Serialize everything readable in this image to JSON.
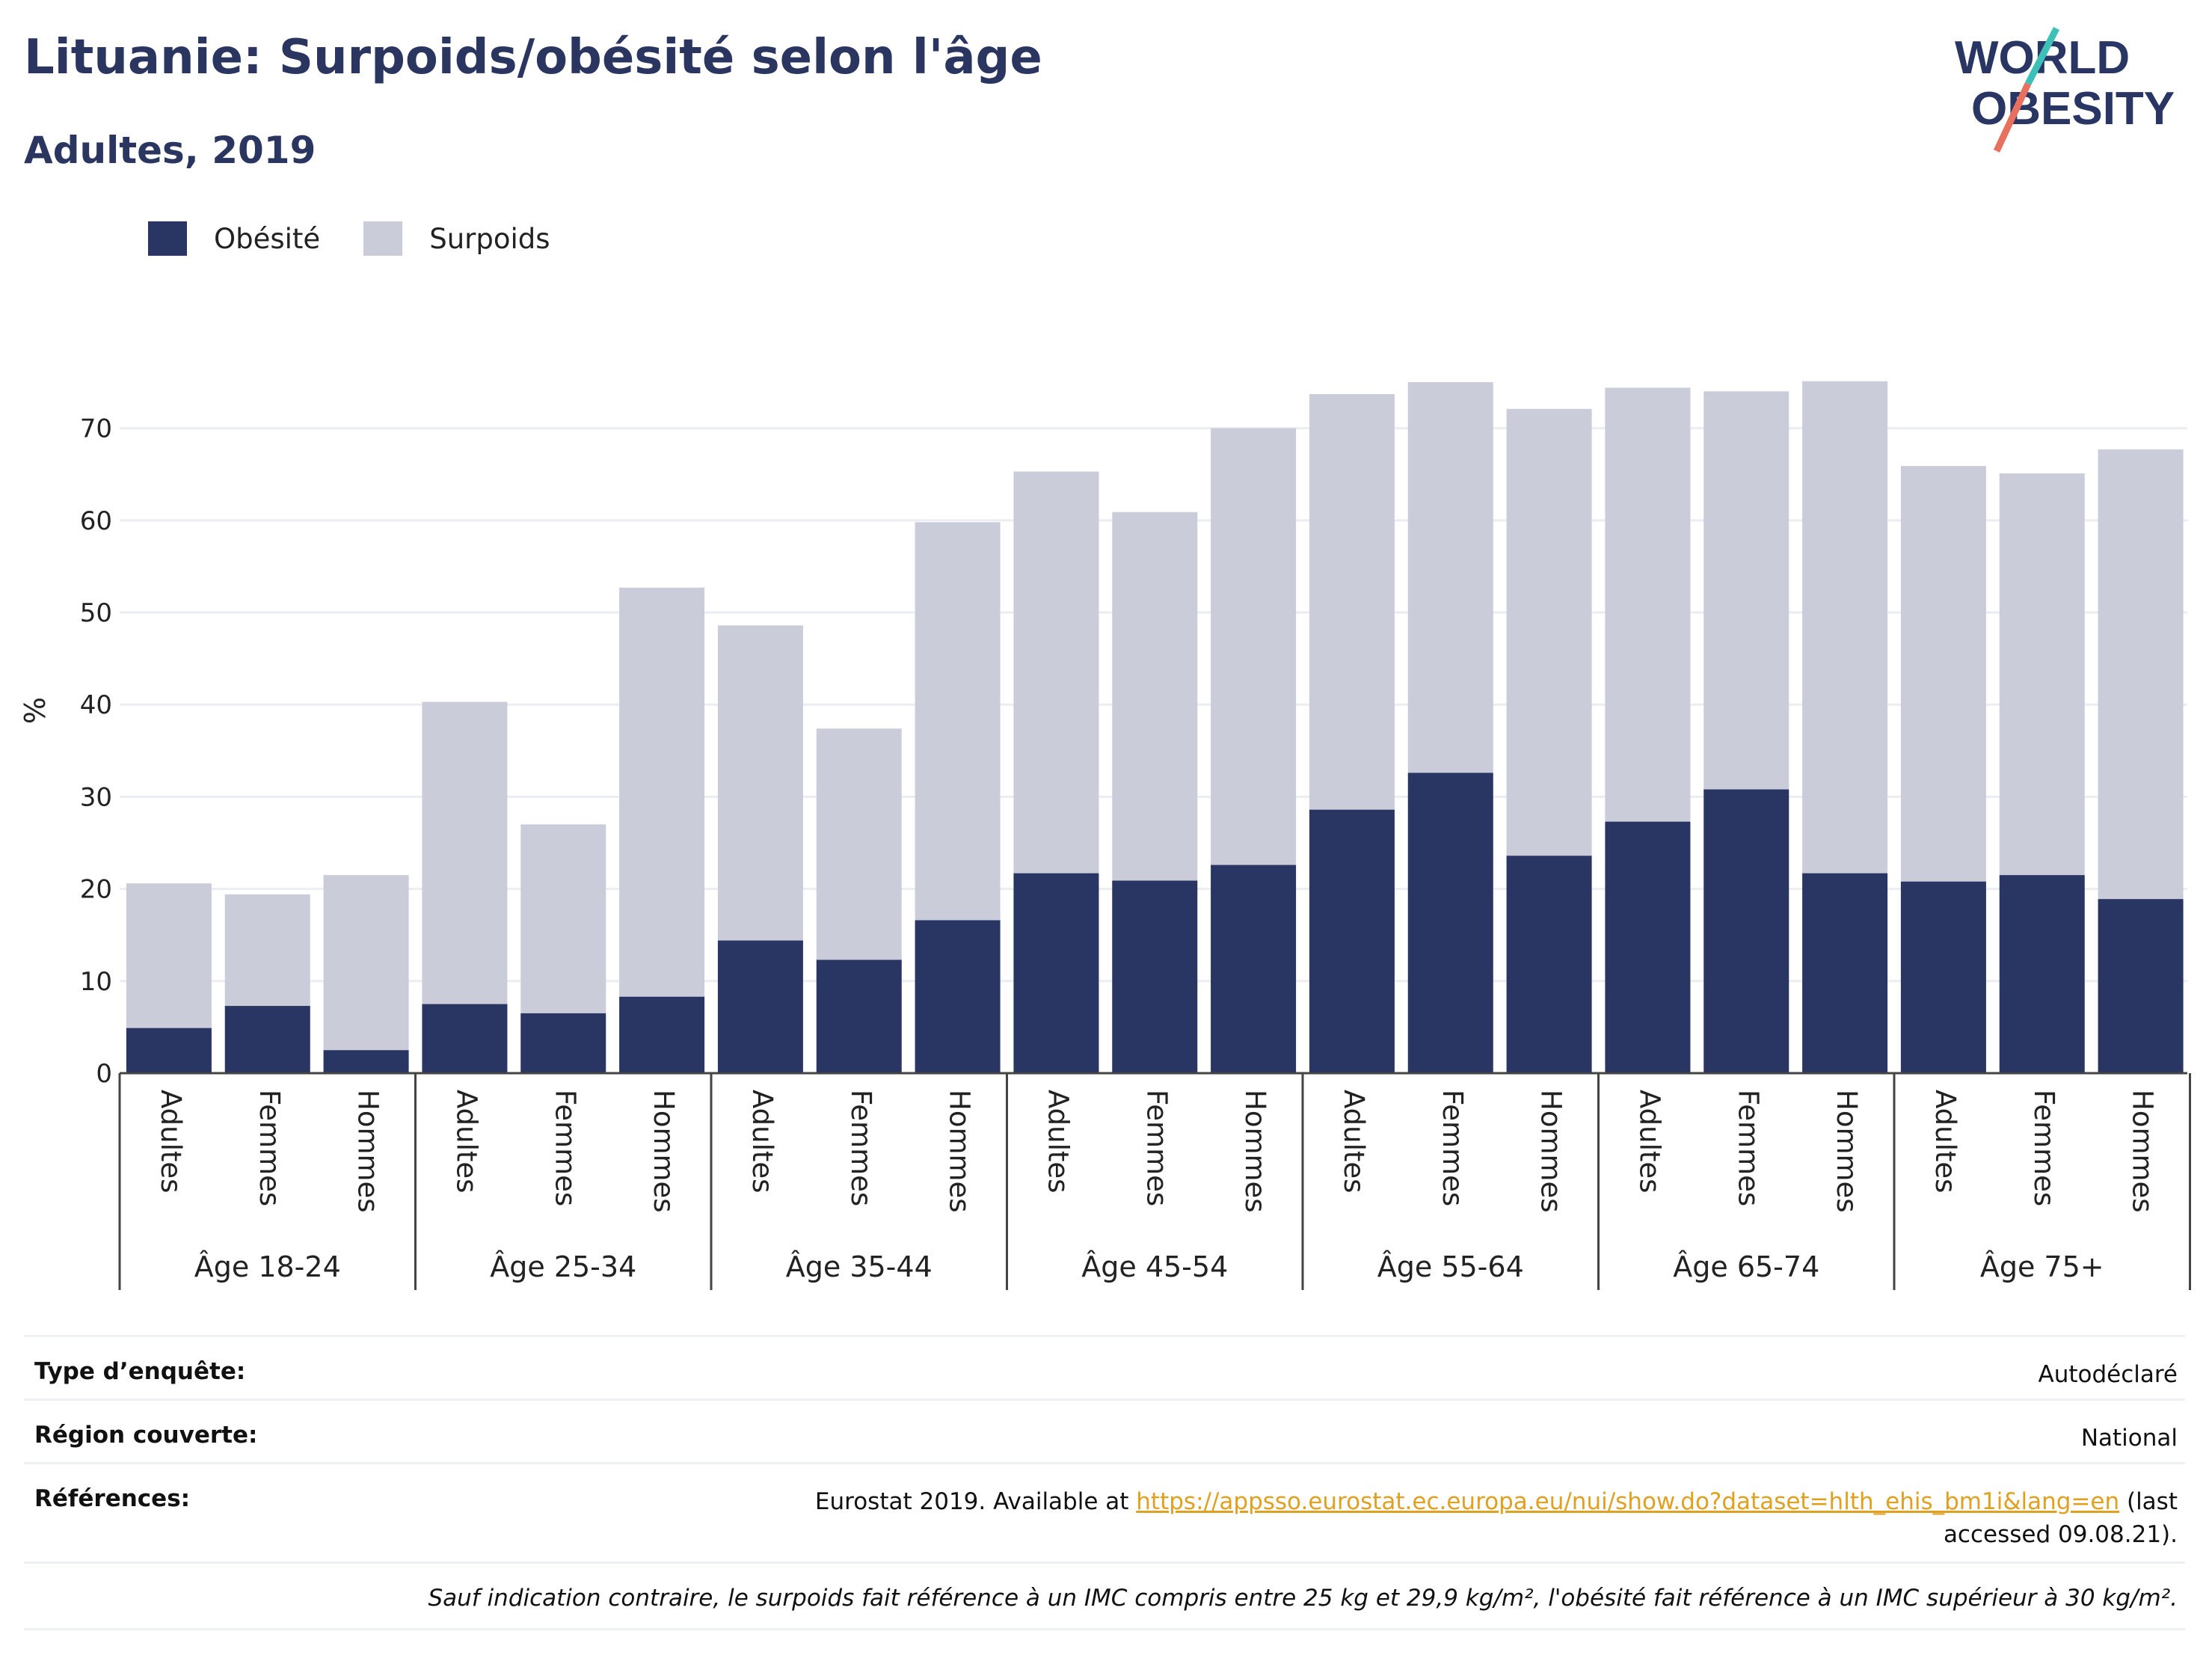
{
  "header": {
    "title": "Lituanie: Surpoids/obésité selon l'âge",
    "subtitle": "Adultes, 2019",
    "logo_line1": "WORLD",
    "logo_line2": "OBESITY"
  },
  "legend": {
    "obesity_label": "Obésité",
    "overweight_label": "Surpoids"
  },
  "colors": {
    "obesity": "#293562",
    "overweight": "#cacdd9",
    "accent_teal": "#3cc0b8",
    "accent_coral": "#e8705e",
    "link": "#e0a020"
  },
  "chart_data": {
    "type": "bar",
    "stacked": true,
    "ylabel": "%",
    "ylim": [
      0,
      80
    ],
    "yticks": [
      0,
      10,
      20,
      30,
      40,
      50,
      60,
      70
    ],
    "grid": true,
    "legend_position": "top-left",
    "groups": [
      "Âge 18-24",
      "Âge 25-34",
      "Âge 35-44",
      "Âge 45-54",
      "Âge 55-64",
      "Âge 65-74",
      "Âge 75+"
    ],
    "subcategories": [
      "Adultes",
      "Femmes",
      "Hommes"
    ],
    "series": [
      {
        "name": "Obésité",
        "values": [
          4.9,
          7.3,
          2.5,
          7.5,
          6.5,
          8.3,
          14.4,
          12.3,
          16.6,
          21.7,
          20.9,
          22.6,
          28.6,
          32.6,
          23.6,
          27.3,
          30.8,
          21.7,
          20.8,
          21.5,
          18.9
        ]
      },
      {
        "name": "Surpoids",
        "values": [
          15.7,
          12.1,
          19.0,
          32.8,
          20.5,
          44.4,
          34.2,
          25.1,
          43.2,
          43.6,
          40.0,
          47.4,
          45.1,
          42.4,
          48.5,
          47.1,
          43.2,
          53.4,
          45.1,
          43.6,
          48.8
        ]
      }
    ]
  },
  "info": {
    "survey_type_label": "Type d’enquête:",
    "survey_type_value": "Autodéclaré",
    "region_label": "Région couverte:",
    "region_value": "National",
    "references_label": "Références:",
    "references_prefix": "Eurostat 2019. Available at ",
    "references_link": "https://appsso.eurostat.ec.europa.eu/nui/show.do?dataset=hlth_ehis_bm1i&lang=en",
    "references_suffix": " (last accessed 09.08.21).",
    "note": "Sauf indication contraire, le surpoids fait référence à un IMC compris entre 25 kg et 29,9 kg/m², l'obésité fait référence à un IMC supérieur à 30 kg/m²."
  }
}
